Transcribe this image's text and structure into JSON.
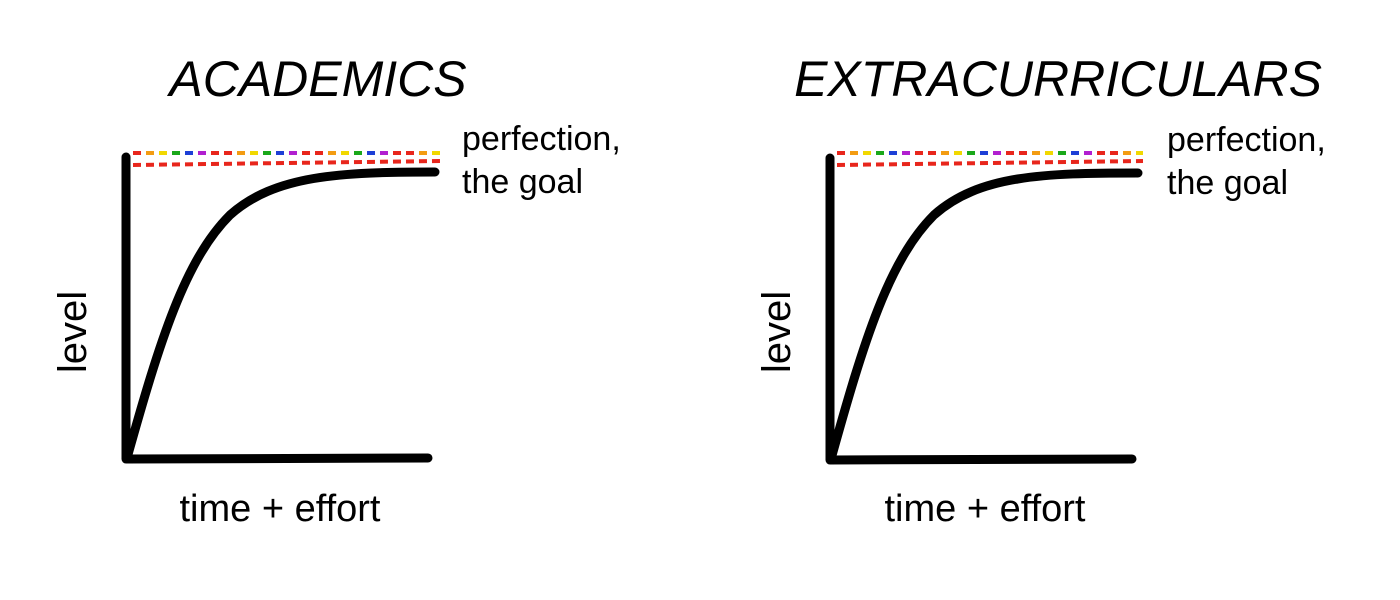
{
  "panels": [
    {
      "title": "ACADEMICS",
      "y_label": "level",
      "x_label": "time + effort",
      "annotation": [
        "perfection,",
        "the goal"
      ]
    },
    {
      "title": "EXTRACURRICULARS",
      "y_label": "level",
      "x_label": "time + effort",
      "annotation": [
        "perfection,",
        "the goal"
      ]
    }
  ]
}
